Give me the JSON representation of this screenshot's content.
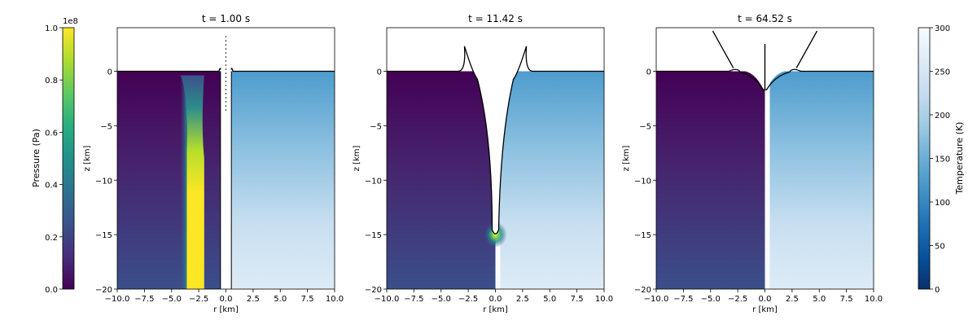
{
  "colors": {
    "viridis": [
      "#440154",
      "#472d7b",
      "#3b528b",
      "#2c728e",
      "#21918c",
      "#28ae80",
      "#5ec962",
      "#addc30",
      "#fde725"
    ],
    "blues_r": [
      "#08306b",
      "#08519c",
      "#2171b5",
      "#4292c6",
      "#6baed6",
      "#9ecae1",
      "#c6dbef",
      "#deebf7",
      "#f7fbff"
    ],
    "surface_line": "#000000",
    "background": "#ffffff"
  },
  "colorbars": {
    "pressure": {
      "label": "Pressure (Pa)",
      "exponent": "1e8",
      "ticks": [
        "0.0",
        "0.2",
        "0.4",
        "0.6",
        "0.8",
        "1.0"
      ],
      "range": [
        0,
        1.0
      ],
      "colormap": "viridis"
    },
    "temperature": {
      "label": "Temperature (K)",
      "ticks": [
        "0",
        "50",
        "100",
        "150",
        "200",
        "250",
        "300"
      ],
      "range": [
        0,
        300
      ],
      "colormap": "Blues_r"
    }
  },
  "chart_data": [
    {
      "type": "heatmap",
      "title": "t =  1.00 s",
      "xlabel": "r [km]",
      "ylabel": "z [km]",
      "xlim": [
        -10,
        10
      ],
      "ylim": [
        -20,
        4
      ],
      "xticks": [
        "−10.0",
        "−7.5",
        "−5.0",
        "−2.5",
        "0.0",
        "2.5",
        "5.0",
        "7.5",
        "10.0"
      ],
      "yticks": [
        "0",
        "−5",
        "−10",
        "−15",
        "−20"
      ],
      "left_field": "pressure",
      "right_field": "temperature",
      "cavity": {
        "radius_top": 0.5,
        "radius_bottom": 0.4,
        "depth": -20
      },
      "pressure_front": {
        "r_min": -3.6,
        "r_max": -2.0,
        "z_top": -5,
        "peak": 1.0
      },
      "grid": false
    },
    {
      "type": "heatmap",
      "title": "t =  11.42 s",
      "xlabel": "r [km]",
      "ylabel": "z [km]",
      "xlim": [
        -10,
        10
      ],
      "ylim": [
        -20,
        4
      ],
      "xticks": [
        "−10.0",
        "−7.5",
        "−5.0",
        "−2.5",
        "0.0",
        "2.5",
        "5.0",
        "7.5",
        "10.0"
      ],
      "yticks": [
        "0",
        "−5",
        "−10",
        "−15",
        "−20"
      ],
      "left_field": "pressure",
      "right_field": "temperature",
      "cavity": {
        "radius_top": 1.8,
        "depth": -15,
        "rim_height": 2.3
      },
      "pressure_front": {
        "r": 0,
        "z": -15,
        "peak": 0.6
      },
      "grid": false
    },
    {
      "type": "heatmap",
      "title": "t =  64.52 s",
      "xlabel": "r [km]",
      "ylabel": "z [km]",
      "xlim": [
        -10,
        10
      ],
      "ylim": [
        -20,
        4
      ],
      "xticks": [
        "−10.0",
        "−7.5",
        "−5.0",
        "−2.5",
        "0.0",
        "2.5",
        "5.0",
        "7.5",
        "10.0"
      ],
      "yticks": [
        "0",
        "−5",
        "−10",
        "−15",
        "−20"
      ],
      "left_field": "pressure",
      "right_field": "temperature",
      "cavity": {
        "radius_top": 3.0,
        "depth": -1.7,
        "central_peak_height": 2.5
      },
      "grid": false
    }
  ]
}
